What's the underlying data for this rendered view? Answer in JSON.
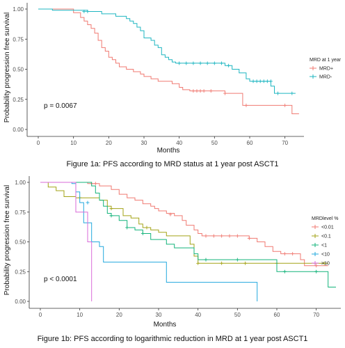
{
  "chart_data": [
    {
      "type": "line",
      "step": true,
      "caption": "Figure 1a: PFS according to MRD status at 1 year post ASCT1",
      "xlabel": "Months",
      "ylabel": "Probability progression free survival",
      "xlim": [
        0,
        75
      ],
      "ylim": [
        0,
        1.0
      ],
      "xticks": [
        "0",
        "10",
        "20",
        "30",
        "40",
        "50",
        "60",
        "70"
      ],
      "yticks": [
        "0.00",
        "0.25",
        "0.50",
        "0.75",
        "1.00"
      ],
      "annotation": "p = 0.0067",
      "legend": {
        "title": "MRD at 1 year",
        "placement": "right"
      },
      "series": [
        {
          "name": "MRD+",
          "color": "#f07a72",
          "points": [
            [
              0,
              1.0
            ],
            [
              10,
              0.97
            ],
            [
              12,
              0.93
            ],
            [
              13,
              0.9
            ],
            [
              14,
              0.87
            ],
            [
              15,
              0.84
            ],
            [
              16,
              0.8
            ],
            [
              17,
              0.74
            ],
            [
              18,
              0.68
            ],
            [
              19,
              0.65
            ],
            [
              20,
              0.6
            ],
            [
              21,
              0.58
            ],
            [
              22,
              0.55
            ],
            [
              23,
              0.52
            ],
            [
              25,
              0.5
            ],
            [
              27,
              0.48
            ],
            [
              29,
              0.46
            ],
            [
              30,
              0.44
            ],
            [
              32,
              0.42
            ],
            [
              34,
              0.4
            ],
            [
              38,
              0.38
            ],
            [
              40,
              0.35
            ],
            [
              41,
              0.33
            ],
            [
              43,
              0.32
            ],
            [
              53,
              0.3
            ],
            [
              58,
              0.2
            ],
            [
              72,
              0.13
            ],
            [
              74,
              0.13
            ]
          ],
          "censored": [
            [
              44,
              0.32
            ],
            [
              45,
              0.32
            ],
            [
              46,
              0.32
            ],
            [
              47,
              0.32
            ],
            [
              49,
              0.32
            ],
            [
              53,
              0.3
            ],
            [
              59,
              0.2
            ],
            [
              70,
              0.2
            ]
          ]
        },
        {
          "name": "MRD-",
          "color": "#1fb6c1",
          "points": [
            [
              0,
              1.0
            ],
            [
              4,
              0.99
            ],
            [
              14,
              0.98
            ],
            [
              18,
              0.96
            ],
            [
              22,
              0.94
            ],
            [
              25,
              0.92
            ],
            [
              26,
              0.9
            ],
            [
              27,
              0.88
            ],
            [
              28,
              0.85
            ],
            [
              29,
              0.82
            ],
            [
              30,
              0.76
            ],
            [
              32,
              0.74
            ],
            [
              33,
              0.7
            ],
            [
              34,
              0.68
            ],
            [
              35,
              0.62
            ],
            [
              36,
              0.6
            ],
            [
              37,
              0.58
            ],
            [
              38,
              0.56
            ],
            [
              39,
              0.55
            ],
            [
              53,
              0.53
            ],
            [
              55,
              0.5
            ],
            [
              57,
              0.47
            ],
            [
              59,
              0.42
            ],
            [
              60,
              0.4
            ],
            [
              66,
              0.36
            ],
            [
              67,
              0.3
            ],
            [
              73,
              0.3
            ]
          ],
          "censored": [
            [
              13,
              0.98
            ],
            [
              14,
              0.98
            ],
            [
              40,
              0.55
            ],
            [
              42,
              0.55
            ],
            [
              44,
              0.55
            ],
            [
              46,
              0.55
            ],
            [
              48,
              0.55
            ],
            [
              50,
              0.55
            ],
            [
              52,
              0.55
            ],
            [
              54,
              0.53
            ],
            [
              61,
              0.4
            ],
            [
              62,
              0.4
            ],
            [
              63,
              0.4
            ],
            [
              64,
              0.4
            ],
            [
              65,
              0.4
            ],
            [
              66,
              0.4
            ],
            [
              68,
              0.3
            ],
            [
              72,
              0.3
            ]
          ]
        }
      ]
    },
    {
      "type": "line",
      "step": true,
      "caption": "Figure 1b: PFS according to logarithmic reduction in MRD at 1 year post ASCT1",
      "xlabel": "Months",
      "ylabel": "Probability progression free survival",
      "xlim": [
        0,
        75
      ],
      "ylim": [
        0,
        1.0
      ],
      "xticks": [
        "0",
        "10",
        "20",
        "30",
        "40",
        "50",
        "60",
        "70"
      ],
      "yticks": [
        "0.00",
        "0.25",
        "0.50",
        "0.75",
        "1.00"
      ],
      "annotation": "p < 0.0001",
      "legend": {
        "title": "MRDlevel %",
        "placement": "right"
      },
      "series": [
        {
          "name": "<0.01",
          "color": "#f07a72",
          "points": [
            [
              0,
              1.0
            ],
            [
              12,
              0.99
            ],
            [
              15,
              0.97
            ],
            [
              18,
              0.94
            ],
            [
              20,
              0.9
            ],
            [
              22,
              0.87
            ],
            [
              24,
              0.85
            ],
            [
              26,
              0.82
            ],
            [
              28,
              0.8
            ],
            [
              29,
              0.78
            ],
            [
              30,
              0.76
            ],
            [
              32,
              0.74
            ],
            [
              34,
              0.72
            ],
            [
              36,
              0.68
            ],
            [
              37,
              0.64
            ],
            [
              39,
              0.6
            ],
            [
              40,
              0.57
            ],
            [
              41,
              0.55
            ],
            [
              53,
              0.53
            ],
            [
              55,
              0.5
            ],
            [
              57,
              0.46
            ],
            [
              59,
              0.42
            ],
            [
              61,
              0.4
            ],
            [
              66,
              0.35
            ],
            [
              67,
              0.3
            ],
            [
              73,
              0.3
            ]
          ],
          "censored": [
            [
              13,
              0.99
            ],
            [
              14,
              0.99
            ],
            [
              33,
              0.73
            ],
            [
              42,
              0.55
            ],
            [
              44,
              0.55
            ],
            [
              46,
              0.55
            ],
            [
              48,
              0.55
            ],
            [
              50,
              0.55
            ],
            [
              53,
              0.53
            ],
            [
              62,
              0.4
            ],
            [
              64,
              0.4
            ],
            [
              70,
              0.3
            ]
          ]
        },
        {
          "name": "<0.1",
          "color": "#a3a317",
          "points": [
            [
              0,
              1.0
            ],
            [
              2,
              0.96
            ],
            [
              4,
              0.93
            ],
            [
              6,
              0.88
            ],
            [
              9,
              0.87
            ],
            [
              15,
              0.85
            ],
            [
              17,
              0.8
            ],
            [
              18,
              0.78
            ],
            [
              21,
              0.72
            ],
            [
              23,
              0.7
            ],
            [
              25,
              0.65
            ],
            [
              26,
              0.62
            ],
            [
              28,
              0.6
            ],
            [
              30,
              0.58
            ],
            [
              32,
              0.55
            ],
            [
              38,
              0.48
            ],
            [
              39,
              0.38
            ],
            [
              40,
              0.32
            ],
            [
              73,
              0.32
            ]
          ],
          "censored": [
            [
              10,
              0.87
            ],
            [
              18,
              0.78
            ],
            [
              27,
              0.62
            ],
            [
              40,
              0.32
            ],
            [
              46,
              0.32
            ],
            [
              52,
              0.32
            ],
            [
              60,
              0.32
            ],
            [
              72,
              0.32
            ]
          ]
        },
        {
          "name": "<1",
          "color": "#12b37a",
          "points": [
            [
              0,
              1.0
            ],
            [
              13,
              0.97
            ],
            [
              14,
              0.91
            ],
            [
              15,
              0.85
            ],
            [
              16,
              0.8
            ],
            [
              17,
              0.74
            ],
            [
              18,
              0.72
            ],
            [
              20,
              0.68
            ],
            [
              22,
              0.62
            ],
            [
              24,
              0.6
            ],
            [
              26,
              0.57
            ],
            [
              28,
              0.52
            ],
            [
              32,
              0.48
            ],
            [
              34,
              0.45
            ],
            [
              39,
              0.4
            ],
            [
              40,
              0.35
            ],
            [
              60,
              0.25
            ],
            [
              72,
              0.25
            ],
            [
              73,
              0.12
            ],
            [
              75,
              0.12
            ]
          ],
          "censored": [
            [
              18,
              0.72
            ],
            [
              22,
              0.62
            ],
            [
              26,
              0.57
            ],
            [
              42,
              0.35
            ],
            [
              50,
              0.35
            ],
            [
              62,
              0.25
            ],
            [
              70,
              0.25
            ]
          ]
        },
        {
          "name": "<10",
          "color": "#22a8de",
          "points": [
            [
              0,
              1.0
            ],
            [
              8,
              0.99
            ],
            [
              9,
              0.92
            ],
            [
              10,
              0.83
            ],
            [
              11,
              0.66
            ],
            [
              13,
              0.5
            ],
            [
              15,
              0.46
            ],
            [
              16,
              0.33
            ],
            [
              32,
              0.16
            ],
            [
              55,
              0.0
            ]
          ],
          "censored": [
            [
              12,
              0.83
            ]
          ]
        },
        {
          "name": ">10",
          "color": "#d96ad8",
          "points": [
            [
              0,
              1.0
            ],
            [
              8,
              1.0
            ],
            [
              9,
              0.75
            ],
            [
              12,
              0.5
            ],
            [
              13,
              0.0
            ]
          ],
          "censored": []
        }
      ]
    }
  ]
}
